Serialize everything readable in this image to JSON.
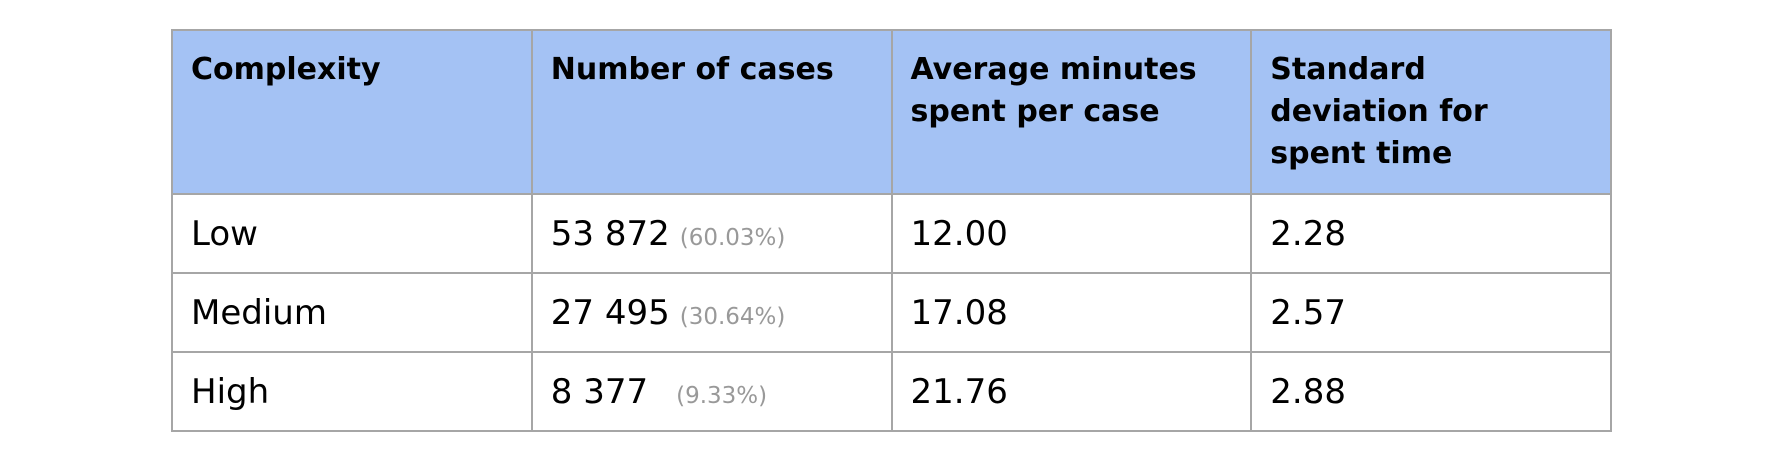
{
  "table": {
    "headers": [
      "Complexity",
      "Number of cases",
      "Average minutes spent per case",
      "Standard deviation for spent time"
    ],
    "rows": [
      {
        "complexity": "Low",
        "cases": "53 872",
        "cases_pct": "(60.03%)",
        "avg_minutes": "12.00",
        "std_dev": "2.28"
      },
      {
        "complexity": "Medium",
        "cases": "27 495",
        "cases_pct": "(30.64%)",
        "avg_minutes": "17.08",
        "std_dev": "2.57"
      },
      {
        "complexity": "High",
        "cases": "8 377",
        "cases_pct": "(9.33%)",
        "avg_minutes": "21.76",
        "std_dev": "2.88"
      }
    ]
  },
  "colors": {
    "header_background": "#a4c2f4",
    "border": "#a6a6a6",
    "percent_text": "#999999"
  }
}
